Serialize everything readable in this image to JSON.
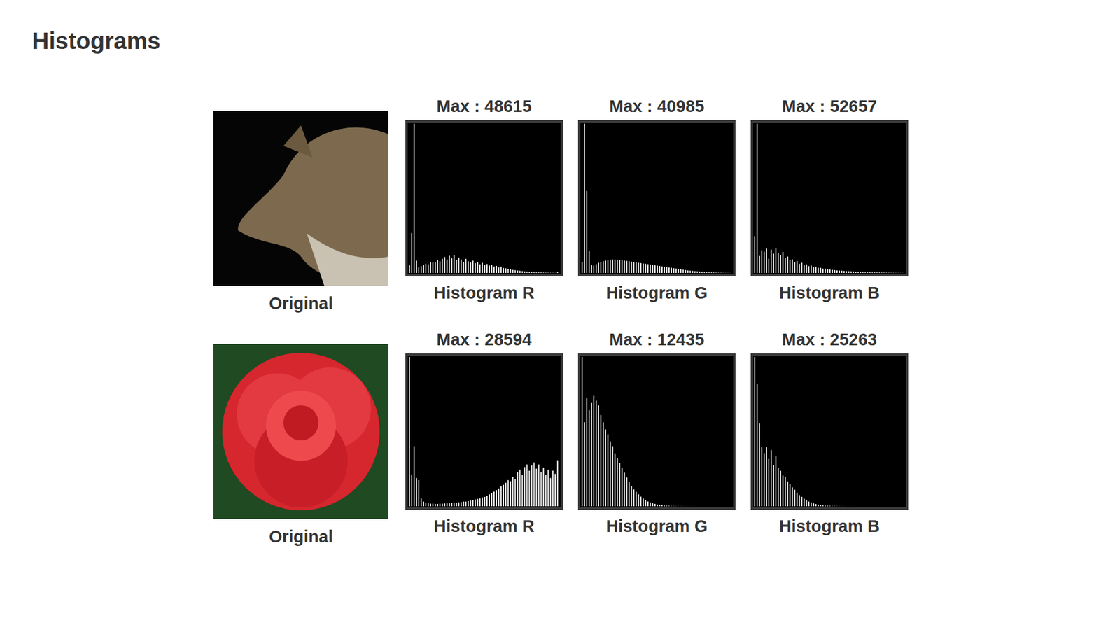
{
  "title": "Histograms",
  "captions": [
    "Original",
    "Original"
  ],
  "chart_data": [
    {
      "type": "histogram",
      "title": "Max : 48615",
      "xlabel": "Histogram R",
      "color": "#ffffff",
      "tick_labels": false,
      "xlim": [
        0,
        256
      ],
      "ylim": [
        0,
        48615
      ],
      "bins": [
        0,
        4,
        8,
        12,
        16,
        20,
        24,
        28,
        32,
        36,
        40,
        44,
        48,
        52,
        56,
        60,
        64,
        68,
        72,
        76,
        80,
        84,
        88,
        92,
        96,
        100,
        104,
        108,
        112,
        116,
        120,
        124,
        128,
        132,
        136,
        140,
        144,
        148,
        152,
        156,
        160,
        164,
        168,
        172,
        176,
        180,
        184,
        188,
        192,
        196,
        200,
        204,
        208,
        212,
        216,
        220,
        224,
        228,
        232,
        236,
        240,
        244,
        248,
        252,
        256
      ],
      "counts": [
        2500,
        13000,
        48615,
        4000,
        1800,
        2200,
        2600,
        3000,
        2800,
        3500,
        3400,
        3600,
        4200,
        3800,
        4600,
        5200,
        4400,
        5600,
        4800,
        5900,
        4200,
        5000,
        4400,
        3600,
        4600,
        3800,
        3400,
        4000,
        3200,
        3600,
        2800,
        3300,
        2600,
        2900,
        2400,
        2600,
        2100,
        2300,
        1800,
        2000,
        1600,
        1500,
        1300,
        1200,
        1000,
        900,
        800,
        700,
        600,
        500,
        450,
        400,
        350,
        300,
        250,
        220,
        180,
        150,
        120,
        100,
        80,
        60,
        40,
        300
      ]
    },
    {
      "type": "histogram",
      "title": "Max : 40985",
      "xlabel": "Histogram G",
      "color": "#ffffff",
      "tick_labels": false,
      "xlim": [
        0,
        256
      ],
      "ylim": [
        0,
        40985
      ],
      "bins": [
        0,
        4,
        8,
        12,
        16,
        20,
        24,
        28,
        32,
        36,
        40,
        44,
        48,
        52,
        56,
        60,
        64,
        68,
        72,
        76,
        80,
        84,
        88,
        92,
        96,
        100,
        104,
        108,
        112,
        116,
        120,
        124,
        128,
        132,
        136,
        140,
        144,
        148,
        152,
        156,
        160,
        164,
        168,
        172,
        176,
        180,
        184,
        188,
        192,
        196,
        200,
        204,
        208,
        212,
        216,
        220,
        224,
        228,
        232,
        236,
        240,
        244,
        248,
        252,
        256
      ],
      "counts": [
        3000,
        40985,
        22500,
        6000,
        2200,
        2000,
        2400,
        2800,
        3000,
        3200,
        3400,
        3500,
        3600,
        3700,
        3700,
        3600,
        3600,
        3500,
        3400,
        3300,
        3200,
        3100,
        3000,
        2900,
        2800,
        2700,
        2600,
        2500,
        2400,
        2300,
        2200,
        2100,
        2000,
        1900,
        1800,
        1700,
        1600,
        1500,
        1400,
        1300,
        1200,
        1100,
        1000,
        900,
        800,
        700,
        620,
        560,
        500,
        440,
        380,
        330,
        280,
        240,
        200,
        170,
        140,
        110,
        90,
        70,
        50,
        40,
        30,
        20
      ]
    },
    {
      "type": "histogram",
      "title": "Max : 52657",
      "xlabel": "Histogram B",
      "color": "#ffffff",
      "tick_labels": false,
      "xlim": [
        0,
        256
      ],
      "ylim": [
        0,
        52657
      ],
      "bins": [
        0,
        4,
        8,
        12,
        16,
        20,
        24,
        28,
        32,
        36,
        40,
        44,
        48,
        52,
        56,
        60,
        64,
        68,
        72,
        76,
        80,
        84,
        88,
        92,
        96,
        100,
        104,
        108,
        112,
        116,
        120,
        124,
        128,
        132,
        136,
        140,
        144,
        148,
        152,
        156,
        160,
        164,
        168,
        172,
        176,
        180,
        184,
        188,
        192,
        196,
        200,
        204,
        208,
        212,
        216,
        220,
        224,
        228,
        232,
        236,
        240,
        244,
        248,
        252,
        256
      ],
      "counts": [
        13000,
        52657,
        6000,
        8000,
        7500,
        8600,
        5000,
        8200,
        6800,
        8800,
        7000,
        6200,
        7400,
        5200,
        5800,
        4600,
        4800,
        3800,
        4200,
        3200,
        3600,
        2800,
        3000,
        2400,
        2600,
        2000,
        2200,
        1800,
        1800,
        1500,
        1500,
        1300,
        1200,
        1100,
        1000,
        900,
        850,
        800,
        700,
        650,
        600,
        550,
        500,
        450,
        400,
        380,
        350,
        320,
        300,
        280,
        250,
        230,
        210,
        190,
        170,
        150,
        130,
        110,
        90,
        80,
        60,
        50,
        40,
        30
      ]
    },
    {
      "type": "histogram",
      "title": "Max : 28594",
      "xlabel": "Histogram R",
      "color": "#ffffff",
      "tick_labels": false,
      "xlim": [
        0,
        256
      ],
      "ylim": [
        0,
        28594
      ],
      "bins": [
        0,
        4,
        8,
        12,
        16,
        20,
        24,
        28,
        32,
        36,
        40,
        44,
        48,
        52,
        56,
        60,
        64,
        68,
        72,
        76,
        80,
        84,
        88,
        92,
        96,
        100,
        104,
        108,
        112,
        116,
        120,
        124,
        128,
        132,
        136,
        140,
        144,
        148,
        152,
        156,
        160,
        164,
        168,
        172,
        176,
        180,
        184,
        188,
        192,
        196,
        200,
        204,
        208,
        212,
        216,
        220,
        224,
        228,
        232,
        236,
        240,
        244,
        248,
        252,
        256
      ],
      "counts": [
        28594,
        6000,
        11500,
        5400,
        5000,
        1500,
        900,
        700,
        600,
        500,
        500,
        450,
        450,
        500,
        500,
        550,
        600,
        600,
        650,
        700,
        700,
        750,
        800,
        900,
        900,
        1000,
        1100,
        1200,
        1300,
        1400,
        1500,
        1700,
        1800,
        2000,
        2300,
        2500,
        2800,
        3100,
        3400,
        3800,
        4100,
        4500,
        5000,
        4800,
        5600,
        5200,
        6500,
        7000,
        6000,
        7500,
        8000,
        6800,
        7800,
        8400,
        7200,
        8000,
        6600,
        7400,
        6000,
        7000,
        5400,
        6800,
        6200,
        8800
      ]
    },
    {
      "type": "histogram",
      "title": "Max : 12435",
      "xlabel": "Histogram G",
      "color": "#ffffff",
      "tick_labels": false,
      "xlim": [
        0,
        256
      ],
      "ylim": [
        0,
        12435
      ],
      "bins": [
        0,
        4,
        8,
        12,
        16,
        20,
        24,
        28,
        32,
        36,
        40,
        44,
        48,
        52,
        56,
        60,
        64,
        68,
        72,
        76,
        80,
        84,
        88,
        92,
        96,
        100,
        104,
        108,
        112,
        116,
        120,
        124,
        128,
        132,
        136,
        140,
        144,
        148,
        152,
        156,
        160,
        164,
        168,
        172,
        176,
        180,
        184,
        188,
        192,
        196,
        200,
        204,
        208,
        212,
        216,
        220,
        224,
        228,
        232,
        236,
        240,
        244,
        248,
        252,
        256
      ],
      "counts": [
        12435,
        7000,
        9000,
        8000,
        8600,
        9200,
        8800,
        8400,
        7600,
        7000,
        6400,
        6000,
        5400,
        5000,
        4400,
        4000,
        3600,
        3200,
        2800,
        2400,
        2000,
        1700,
        1400,
        1200,
        1000,
        800,
        650,
        500,
        400,
        320,
        250,
        200,
        150,
        110,
        80,
        60,
        40,
        30,
        20,
        15,
        10,
        8,
        6,
        5,
        4,
        3,
        2,
        2,
        1,
        1,
        1,
        1,
        0,
        0,
        0,
        0,
        0,
        0,
        0,
        0,
        0,
        0,
        0,
        0
      ]
    },
    {
      "type": "histogram",
      "title": "Max : 25263",
      "xlabel": "Histogram B",
      "color": "#ffffff",
      "tick_labels": false,
      "xlim": [
        0,
        256
      ],
      "ylim": [
        0,
        25263
      ],
      "bins": [
        0,
        4,
        8,
        12,
        16,
        20,
        24,
        28,
        32,
        36,
        40,
        44,
        48,
        52,
        56,
        60,
        64,
        68,
        72,
        76,
        80,
        84,
        88,
        92,
        96,
        100,
        104,
        108,
        112,
        116,
        120,
        124,
        128,
        132,
        136,
        140,
        144,
        148,
        152,
        156,
        160,
        164,
        168,
        172,
        176,
        180,
        184,
        188,
        192,
        196,
        200,
        204,
        208,
        212,
        216,
        220,
        224,
        228,
        232,
        236,
        240,
        244,
        248,
        252,
        256
      ],
      "counts": [
        25263,
        20700,
        14000,
        10000,
        9000,
        10000,
        8000,
        9500,
        7000,
        8500,
        6500,
        6000,
        5200,
        5000,
        4200,
        3800,
        3200,
        2800,
        2300,
        1900,
        1600,
        1300,
        1000,
        800,
        650,
        500,
        380,
        280,
        200,
        150,
        110,
        80,
        60,
        40,
        30,
        20,
        15,
        10,
        8,
        5,
        4,
        3,
        2,
        1,
        1,
        1,
        0,
        0,
        0,
        0,
        0,
        0,
        0,
        0,
        0,
        0,
        0,
        0,
        0,
        0,
        0,
        0,
        0,
        0
      ]
    }
  ]
}
